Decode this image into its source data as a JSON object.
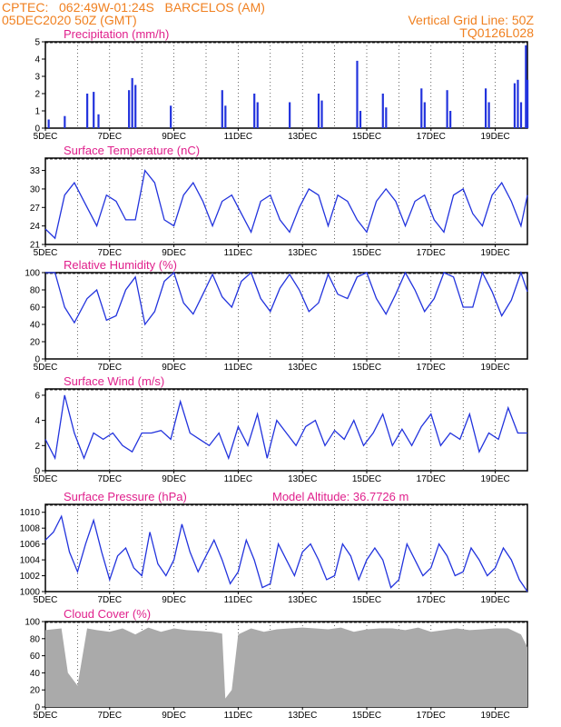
{
  "header": {
    "line1_left": "CPTEC:   062:49W-01:24S   BARCELOS (AM)",
    "line2_left": "05DEC2020 50Z (GMT)",
    "line1_right": "Vertical Grid Line: 50Z",
    "line2_right": "TQ0126L028"
  },
  "x_labels": [
    "5DEC",
    "7DEC",
    "9DEC",
    "11DEC",
    "13DEC",
    "15DEC",
    "17DEC",
    "19DEC"
  ],
  "colors": {
    "title": "#e0208c",
    "header": "#f08020",
    "line": "#2233dd",
    "bar": "#2233dd",
    "cloud": "#aaaaaa"
  },
  "chart_data": [
    {
      "type": "bar",
      "title": "Precipitation (mm/h)",
      "ylim": [
        0,
        5
      ],
      "yticks": [
        0,
        1,
        2,
        3,
        4,
        5
      ],
      "events": [
        {
          "day": 0.1,
          "v": 0.5
        },
        {
          "day": 0.6,
          "v": 0.7
        },
        {
          "day": 1.3,
          "v": 2.0
        },
        {
          "day": 1.5,
          "v": 2.1
        },
        {
          "day": 1.65,
          "v": 0.8
        },
        {
          "day": 2.6,
          "v": 2.2
        },
        {
          "day": 2.7,
          "v": 2.9
        },
        {
          "day": 2.8,
          "v": 2.5
        },
        {
          "day": 3.9,
          "v": 1.3
        },
        {
          "day": 5.5,
          "v": 2.2
        },
        {
          "day": 5.6,
          "v": 1.3
        },
        {
          "day": 6.5,
          "v": 2.0
        },
        {
          "day": 6.6,
          "v": 1.5
        },
        {
          "day": 7.6,
          "v": 1.5
        },
        {
          "day": 8.5,
          "v": 2.0
        },
        {
          "day": 8.6,
          "v": 1.6
        },
        {
          "day": 9.7,
          "v": 3.9
        },
        {
          "day": 9.8,
          "v": 1.0
        },
        {
          "day": 10.5,
          "v": 2.0
        },
        {
          "day": 10.6,
          "v": 1.2
        },
        {
          "day": 11.7,
          "v": 2.3
        },
        {
          "day": 11.8,
          "v": 1.5
        },
        {
          "day": 12.5,
          "v": 2.2
        },
        {
          "day": 12.6,
          "v": 1.0
        },
        {
          "day": 13.7,
          "v": 2.3
        },
        {
          "day": 13.8,
          "v": 1.5
        },
        {
          "day": 14.6,
          "v": 2.6
        },
        {
          "day": 14.7,
          "v": 2.8
        },
        {
          "day": 14.8,
          "v": 1.5
        },
        {
          "day": 14.95,
          "v": 4.8
        },
        {
          "day": 15.0,
          "v": 2.8
        }
      ]
    },
    {
      "type": "line",
      "title": "Surface Temperature (nC)",
      "ylim": [
        21,
        35
      ],
      "yticks": [
        21,
        24,
        27,
        30,
        33
      ],
      "x": [
        0,
        0.3,
        0.6,
        0.9,
        1.3,
        1.6,
        1.9,
        2.2,
        2.5,
        2.8,
        3.1,
        3.4,
        3.7,
        4.0,
        4.3,
        4.6,
        4.9,
        5.2,
        5.5,
        5.8,
        6.1,
        6.4,
        6.7,
        7.0,
        7.3,
        7.6,
        7.9,
        8.2,
        8.5,
        8.8,
        9.1,
        9.4,
        9.7,
        10.0,
        10.3,
        10.6,
        10.9,
        11.2,
        11.5,
        11.8,
        12.1,
        12.4,
        12.7,
        13.0,
        13.3,
        13.6,
        13.9,
        14.2,
        14.5,
        14.8,
        15.0
      ],
      "values": [
        23.5,
        22,
        29,
        31,
        27,
        24,
        29,
        28,
        25,
        25,
        33,
        31,
        25,
        24,
        29,
        31,
        28,
        24,
        28,
        29,
        26,
        23,
        28,
        29,
        25,
        23,
        27,
        30,
        29,
        24,
        29,
        28,
        25,
        23,
        28,
        30,
        28,
        24,
        28,
        29,
        25,
        23,
        29,
        30,
        26,
        24,
        29,
        31,
        28,
        24,
        29
      ],
      "xlim": [
        0,
        15
      ]
    },
    {
      "type": "line",
      "title": "Relative Humidity (%)",
      "ylim": [
        0,
        100
      ],
      "yticks": [
        0,
        20,
        40,
        60,
        80,
        100
      ],
      "x": [
        0,
        0.3,
        0.6,
        0.9,
        1.3,
        1.6,
        1.9,
        2.2,
        2.5,
        2.8,
        3.1,
        3.4,
        3.7,
        4.0,
        4.3,
        4.6,
        4.9,
        5.2,
        5.5,
        5.8,
        6.1,
        6.4,
        6.7,
        7.0,
        7.3,
        7.6,
        7.9,
        8.2,
        8.5,
        8.8,
        9.1,
        9.4,
        9.7,
        10.0,
        10.3,
        10.6,
        10.9,
        11.2,
        11.5,
        11.8,
        12.1,
        12.4,
        12.7,
        13.0,
        13.3,
        13.6,
        13.9,
        14.2,
        14.5,
        14.8,
        15.0
      ],
      "values": [
        100,
        100,
        60,
        42,
        70,
        80,
        45,
        50,
        80,
        95,
        40,
        55,
        90,
        100,
        65,
        52,
        75,
        98,
        72,
        60,
        90,
        100,
        70,
        55,
        82,
        98,
        80,
        55,
        65,
        98,
        75,
        70,
        95,
        100,
        70,
        52,
        75,
        100,
        80,
        55,
        70,
        100,
        95,
        60,
        60,
        100,
        78,
        50,
        68,
        100,
        78
      ],
      "xlim": [
        0,
        15
      ]
    },
    {
      "type": "line",
      "title": "Surface Wind (m/s)",
      "ylim": [
        0,
        6.5
      ],
      "yticks": [
        0,
        2,
        4,
        6
      ],
      "x": [
        0,
        0.3,
        0.6,
        0.9,
        1.2,
        1.5,
        1.8,
        2.1,
        2.4,
        2.7,
        3.0,
        3.3,
        3.6,
        3.9,
        4.2,
        4.5,
        4.8,
        5.1,
        5.4,
        5.7,
        6.0,
        6.3,
        6.6,
        6.9,
        7.2,
        7.5,
        7.8,
        8.1,
        8.4,
        8.7,
        9.0,
        9.3,
        9.6,
        9.9,
        10.2,
        10.5,
        10.8,
        11.1,
        11.4,
        11.7,
        12.0,
        12.3,
        12.6,
        12.9,
        13.2,
        13.5,
        13.8,
        14.1,
        14.4,
        14.7,
        15.0
      ],
      "values": [
        2.5,
        1,
        6,
        3,
        1,
        3,
        2.5,
        3,
        2,
        1.5,
        3,
        3,
        3.2,
        2.5,
        5.5,
        3,
        2.5,
        2,
        3,
        1,
        3.5,
        2,
        4.5,
        1,
        4,
        3,
        2,
        3.5,
        4,
        2,
        3.2,
        2.5,
        4,
        2,
        3,
        4.5,
        2,
        3.3,
        2,
        3.5,
        4.5,
        2,
        3,
        2.5,
        4.5,
        1.5,
        3,
        2.5,
        5,
        3,
        3
      ],
      "xlim": [
        0,
        15
      ]
    },
    {
      "type": "line",
      "title": "Surface Pressure (hPa)",
      "annotation": "Model Altitude: 36.7726 m",
      "ylim": [
        1000,
        1011
      ],
      "yticks": [
        1000,
        1002,
        1004,
        1006,
        1008,
        1010
      ],
      "x": [
        0,
        0.25,
        0.5,
        0.75,
        1.0,
        1.25,
        1.5,
        1.75,
        2.0,
        2.25,
        2.5,
        2.75,
        3.0,
        3.25,
        3.5,
        3.75,
        4.0,
        4.25,
        4.5,
        4.75,
        5.0,
        5.25,
        5.5,
        5.75,
        6.0,
        6.25,
        6.5,
        6.75,
        7.0,
        7.25,
        7.5,
        7.75,
        8.0,
        8.25,
        8.5,
        8.75,
        9.0,
        9.25,
        9.5,
        9.75,
        10.0,
        10.25,
        10.5,
        10.75,
        11.0,
        11.25,
        11.5,
        11.75,
        12.0,
        12.25,
        12.5,
        12.75,
        13.0,
        13.25,
        13.5,
        13.75,
        14.0,
        14.25,
        14.5,
        14.75,
        15.0
      ],
      "values": [
        1006.5,
        1007.5,
        1009.5,
        1005,
        1002.5,
        1006,
        1009,
        1005,
        1001.5,
        1004.5,
        1005.5,
        1003,
        1002,
        1007.5,
        1003.5,
        1002,
        1004,
        1008.5,
        1005,
        1002.5,
        1004.5,
        1006.5,
        1004,
        1001,
        1002.5,
        1006.5,
        1004,
        1000.5,
        1001,
        1006,
        1004,
        1002,
        1005,
        1006,
        1004,
        1001.5,
        1002,
        1006,
        1004.5,
        1001.5,
        1004,
        1005.5,
        1004,
        1000.5,
        1001.5,
        1006,
        1004,
        1002,
        1003,
        1006,
        1004.5,
        1002,
        1002.5,
        1005.5,
        1004,
        1002,
        1003,
        1005.5,
        1004,
        1001.5,
        1000
      ],
      "xlim": [
        0,
        15
      ]
    },
    {
      "type": "area",
      "title": "Cloud Cover (%)",
      "ylim": [
        0,
        100
      ],
      "yticks": [
        0,
        20,
        40,
        60,
        80,
        100
      ],
      "x": [
        0,
        0.5,
        0.7,
        1.0,
        1.3,
        1.6,
        2.0,
        2.4,
        2.8,
        3.2,
        3.6,
        4.0,
        4.4,
        4.8,
        5.2,
        5.5,
        5.6,
        5.8,
        6.0,
        6.4,
        6.8,
        7.2,
        7.6,
        8.0,
        8.4,
        8.8,
        9.2,
        9.6,
        10.0,
        10.4,
        10.8,
        11.2,
        11.6,
        12.0,
        12.4,
        12.8,
        13.2,
        13.6,
        14.0,
        14.4,
        14.8,
        15.0
      ],
      "values": [
        90,
        92,
        40,
        25,
        92,
        90,
        88,
        92,
        85,
        93,
        88,
        92,
        90,
        89,
        88,
        86,
        10,
        20,
        85,
        92,
        88,
        91,
        92,
        93,
        92,
        91,
        93,
        88,
        91,
        92,
        92,
        90,
        93,
        88,
        90,
        92,
        90,
        91,
        92,
        92,
        85,
        70
      ],
      "xlim": [
        0,
        15
      ]
    }
  ]
}
